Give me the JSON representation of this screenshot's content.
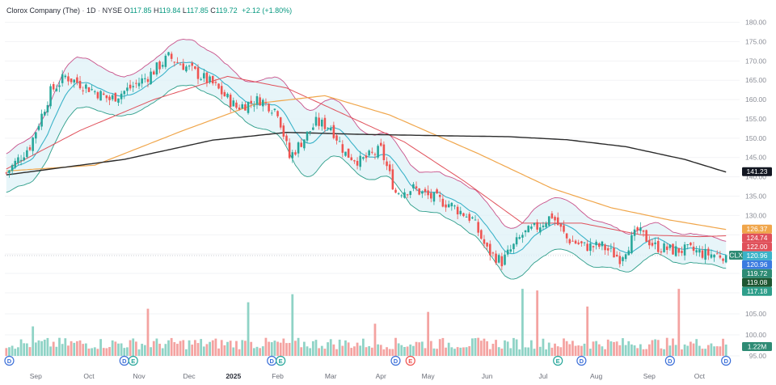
{
  "header": {
    "symbol_name": "Clorox Company (The)",
    "interval": "1D",
    "exchange": "NYSE",
    "o_label": "O",
    "o_value": "117.85",
    "h_label": "H",
    "h_value": "119.84",
    "l_label": "L",
    "l_value": "117.85",
    "c_label": "C",
    "c_value": "119.72",
    "change": "+2.12 (+1.80%)"
  },
  "colors": {
    "up": "#26a69a",
    "down": "#ef5350",
    "volume_up": "#8fd3c6",
    "volume_down": "#f4a3a1",
    "ma_black": "#2b2b2b",
    "ma_orange": "#f0a64b",
    "ma_red": "#e0505a",
    "ma_teal": "#3bb3c9",
    "bb_upper": "#c8518a",
    "bb_lower": "#2e9e8a",
    "bb_fill": "#dff1f7"
  },
  "chart_data": [
    {
      "type": "candlestick",
      "symbol": "CLX",
      "title": "Clorox Company (The) · 1D · NYSE",
      "y_ticks": [
        "180.00",
        "175.00",
        "170.00",
        "165.00",
        "160.00",
        "155.00",
        "150.00",
        "145.00",
        "140.00",
        "135.00",
        "130.00",
        "125.00",
        "120.00",
        "115.00"
      ],
      "ylim": [
        115,
        182
      ],
      "x_ticks": [
        "Sep",
        "Oct",
        "Nov",
        "Dec",
        "2025",
        "Feb",
        "Mar",
        "Apr",
        "May",
        "Jun",
        "Jul",
        "Aug",
        "Sep",
        "Oct"
      ],
      "x_tick_index": [
        10,
        28,
        45,
        62,
        77,
        92,
        110,
        127,
        143,
        163,
        182,
        200,
        218,
        235
      ],
      "bold_tick": "2025",
      "n_bars": 245,
      "close_anchors": [
        [
          0,
          141
        ],
        [
          8,
          148
        ],
        [
          15,
          162
        ],
        [
          20,
          166
        ],
        [
          28,
          163
        ],
        [
          35,
          160
        ],
        [
          42,
          163
        ],
        [
          48,
          166
        ],
        [
          55,
          171
        ],
        [
          62,
          168
        ],
        [
          70,
          164
        ],
        [
          78,
          158
        ],
        [
          86,
          160
        ],
        [
          92,
          157
        ],
        [
          96,
          145
        ],
        [
          100,
          149
        ],
        [
          105,
          154
        ],
        [
          110,
          153
        ],
        [
          115,
          146
        ],
        [
          120,
          144
        ],
        [
          127,
          147
        ],
        [
          132,
          136
        ],
        [
          138,
          137
        ],
        [
          143,
          135
        ],
        [
          150,
          133
        ],
        [
          158,
          129
        ],
        [
          163,
          121
        ],
        [
          168,
          118
        ],
        [
          175,
          125
        ],
        [
          180,
          127
        ],
        [
          185,
          130
        ],
        [
          190,
          124
        ],
        [
          196,
          122
        ],
        [
          202,
          122
        ],
        [
          208,
          119
        ],
        [
          214,
          126
        ],
        [
          220,
          122
        ],
        [
          226,
          121
        ],
        [
          232,
          121
        ],
        [
          237,
          120
        ],
        [
          244,
          119.72
        ]
      ],
      "ma_black": [
        [
          0,
          140.5
        ],
        [
          40,
          144.5
        ],
        [
          70,
          149.5
        ],
        [
          95,
          151.5
        ],
        [
          120,
          151.0
        ],
        [
          150,
          150.6
        ],
        [
          170,
          150.4
        ],
        [
          190,
          149.6
        ],
        [
          210,
          147.8
        ],
        [
          230,
          144.5
        ],
        [
          244,
          141.23
        ]
      ],
      "ma_orange": [
        [
          0,
          141.5
        ],
        [
          30,
          143.0
        ],
        [
          60,
          152.0
        ],
        [
          85,
          159.0
        ],
        [
          108,
          161.0
        ],
        [
          130,
          156.0
        ],
        [
          160,
          146.0
        ],
        [
          185,
          137.0
        ],
        [
          205,
          132.0
        ],
        [
          225,
          128.8
        ],
        [
          244,
          126.37
        ]
      ],
      "ma_red": [
        [
          0,
          142
        ],
        [
          25,
          152
        ],
        [
          50,
          160
        ],
        [
          75,
          166
        ],
        [
          95,
          163
        ],
        [
          115,
          156
        ],
        [
          135,
          149
        ],
        [
          155,
          139
        ],
        [
          175,
          128
        ],
        [
          195,
          128
        ],
        [
          215,
          125
        ],
        [
          235,
          124.5
        ],
        [
          244,
          124.74
        ]
      ],
      "bb_width": [
        [
          0,
          5
        ],
        [
          20,
          7
        ],
        [
          40,
          5
        ],
        [
          60,
          6
        ],
        [
          80,
          5
        ],
        [
          100,
          9
        ],
        [
          120,
          6
        ],
        [
          140,
          5
        ],
        [
          160,
          6
        ],
        [
          180,
          7
        ],
        [
          200,
          6
        ],
        [
          220,
          4
        ],
        [
          244,
          3.5
        ]
      ],
      "volume_ticks": [
        "110.00",
        "105.00",
        "100.00",
        "95.00"
      ],
      "volume_peaks": [
        [
          9,
          0.55
        ],
        [
          48,
          0.88
        ],
        [
          82,
          1.0
        ],
        [
          97,
          1.15
        ],
        [
          125,
          0.6
        ],
        [
          143,
          0.82
        ],
        [
          175,
          1.25
        ],
        [
          180,
          1.22
        ],
        [
          197,
          0.92
        ],
        [
          228,
          1.25
        ]
      ],
      "price_tags": [
        {
          "label": "141.23",
          "value": 141.23,
          "color": "#131722"
        },
        {
          "label": "126.37",
          "value": 126.37,
          "color": "#f0a64b"
        },
        {
          "label": "124.74",
          "value": 124.74,
          "color": "#e0505a"
        },
        {
          "label": "122.00",
          "value": 122.0,
          "color": "#e0505a"
        },
        {
          "label": "120.96",
          "value": 120.96,
          "color": "#3bb3c9"
        },
        {
          "label": "120.96",
          "value": 120.96,
          "color": "#3b7be0"
        },
        {
          "label": "119.72",
          "value": 119.72,
          "color": "#2e8b74"
        },
        {
          "label": "119.08",
          "value": 119.08,
          "color": "#1e5631"
        },
        {
          "label": "117.18",
          "value": 117.18,
          "color": "#2e9e8a"
        }
      ],
      "symbol_badge": "CLX",
      "volume_label": "1.22M",
      "events": [
        {
          "label": "D",
          "index": 1,
          "color": "#3b6fd8"
        },
        {
          "label": "D",
          "index": 40,
          "color": "#3b6fd8"
        },
        {
          "label": "E",
          "index": 43,
          "color": "#26a69a"
        },
        {
          "label": "D",
          "index": 90,
          "color": "#3b6fd8"
        },
        {
          "label": "E",
          "index": 93,
          "color": "#26a69a"
        },
        {
          "label": "D",
          "index": 132,
          "color": "#3b6fd8"
        },
        {
          "label": "E",
          "index": 137,
          "color": "#ef5350"
        },
        {
          "label": "E",
          "index": 187,
          "color": "#26a69a"
        },
        {
          "label": "D",
          "index": 195,
          "color": "#3b6fd8"
        },
        {
          "label": "D",
          "index": 225,
          "color": "#3b6fd8"
        },
        {
          "label": "D",
          "index": 244,
          "color": "#3b6fd8"
        }
      ]
    }
  ]
}
